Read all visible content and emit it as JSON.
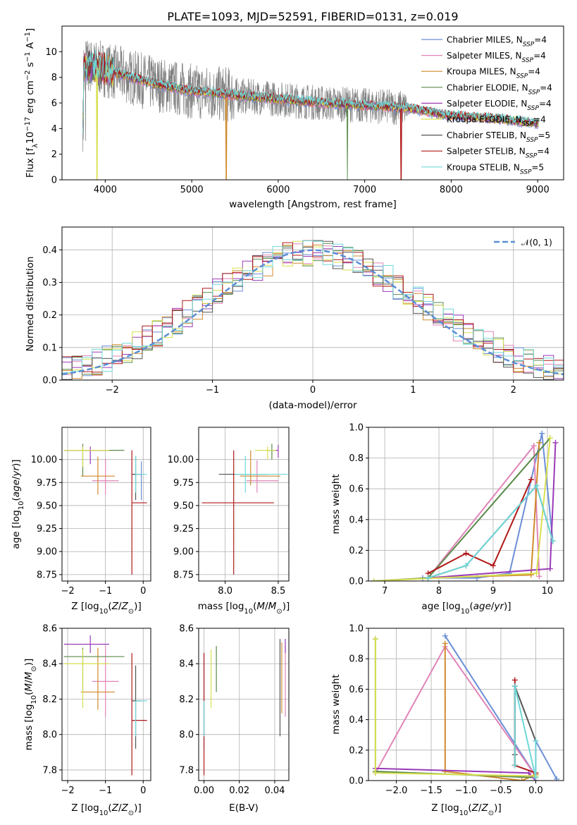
{
  "title": "PLATE=1093, MJD=52591, FIBERID=0131, z=0.019",
  "colors": {
    "Chabrier MILES": "#6b8fd8",
    "Salpeter MILES": "#e084b8",
    "Kroupa MILES": "#d08a2c",
    "Chabrier ELODIE": "#5a8a4a",
    "Salpeter ELODIE": "#9a3ab8",
    "Kroupa ELODIE": "#d8e050",
    "Chabrier STELIB": "#555555",
    "Salpeter STELIB": "#b01818",
    "Kroupa STELIB": "#70d8d8"
  },
  "legend_labels": [
    "Chabrier MILES, N",
    "Salpeter MILES, N",
    "Kroupa MILES, N",
    "Chabrier ELODIE, N",
    "Salpeter ELODIE, N",
    "Kroupa ELODIE, N",
    "Chabrier STELIB, N",
    "Salpeter STELIB, N",
    "Kroupa STELIB, N"
  ],
  "legend_sub": "SSP",
  "legend_counts": [
    "=4",
    "=4",
    "=4",
    "=4",
    "=4",
    "=4",
    "=5",
    "=4",
    "=5"
  ],
  "chart_data": [
    {
      "type": "line",
      "name": "spectrum",
      "xlabel": "wavelength [Angstrom, rest frame]",
      "ylabel_parts": [
        "Flux [f",
        "λ",
        "10",
        "−17",
        " erg cm",
        "−2",
        " s",
        "−1",
        " A",
        "−1",
        "]"
      ],
      "xlim": [
        3500,
        9300
      ],
      "ylim": [
        0,
        12
      ],
      "xticks": [
        4000,
        5000,
        6000,
        7000,
        8000,
        9000
      ],
      "yticks": [
        0,
        2,
        4,
        6,
        8,
        10
      ],
      "continuum": [
        [
          3750,
          9.0
        ],
        [
          4000,
          8.6
        ],
        [
          4500,
          7.6
        ],
        [
          5000,
          6.9
        ],
        [
          5500,
          6.6
        ],
        [
          6000,
          6.3
        ],
        [
          6500,
          6.0
        ],
        [
          7000,
          5.8
        ],
        [
          7500,
          5.6
        ],
        [
          8000,
          5.0
        ],
        [
          8500,
          4.8
        ],
        [
          9000,
          4.4
        ]
      ],
      "drops": [
        {
          "series": "Kroupa ELODIE",
          "x": 3905
        },
        {
          "series": "Kroupa MILES",
          "x": 5400
        },
        {
          "series": "Chabrier ELODIE",
          "x": 6800
        },
        {
          "series": "Salpeter STELIB",
          "x": 7420
        }
      ]
    },
    {
      "type": "histogram",
      "name": "residuals",
      "xlabel": "(data-model)/error",
      "ylabel": "Normed distribution",
      "xlim": [
        -2.5,
        2.5
      ],
      "ylim": [
        0,
        0.47
      ],
      "xticks": [
        -2,
        -1,
        0,
        1,
        2
      ],
      "xtick_labels": [
        "−2",
        "−1",
        "0",
        "1",
        "2"
      ],
      "yticks": [
        0.0,
        0.1,
        0.2,
        0.3,
        0.4
      ],
      "ytick_labels": [
        "0.0",
        "0.1",
        "0.2",
        "0.3",
        "0.4"
      ],
      "bin_width": 0.1,
      "normal_label": "𝒩(0, 1)",
      "normal_color": "#5b8ed6"
    },
    {
      "type": "errorbar",
      "name": "age-vs-Z",
      "xlabel": "Z [log10(Z/Z⊙)]",
      "ylabel": "age  [log10(age/yr)]",
      "xlim": [
        -2.15,
        0.2
      ],
      "ylim": [
        8.68,
        10.35
      ],
      "xticks": [
        -2,
        -1,
        0
      ],
      "xtick_labels": [
        "−2",
        "−1",
        "0"
      ],
      "yticks": [
        8.75,
        9.0,
        9.25,
        9.5,
        9.75,
        10.0
      ],
      "ytick_labels": [
        "8.75",
        "9.00",
        "9.25",
        "9.50",
        "9.75",
        "10.00"
      ],
      "points": [
        {
          "series": "Chabrier MILES",
          "x": -0.05,
          "xerr": [
            0.25,
            0.0
          ],
          "y": 9.84,
          "yerr": [
            0.28,
            0.14
          ]
        },
        {
          "series": "Salpeter MILES",
          "x": -1.0,
          "xerr": [
            0.35,
            0.35
          ],
          "y": 9.77,
          "yerr": [
            0.15,
            0.24
          ]
        },
        {
          "series": "Kroupa MILES",
          "x": -1.2,
          "xerr": [
            0.45,
            0.45
          ],
          "y": 9.82,
          "yerr": [
            0.2,
            0.21
          ]
        },
        {
          "series": "Chabrier ELODIE",
          "x": -1.6,
          "xerr": [
            0.5,
            1.1
          ],
          "y": 10.1,
          "yerr": [
            0.28,
            0.07
          ]
        },
        {
          "series": "Salpeter ELODIE",
          "x": -1.4,
          "xerr": [
            0.7,
            0.5
          ],
          "y": 10.1,
          "yerr": [
            0.15,
            0.04
          ]
        },
        {
          "series": "Kroupa ELODIE",
          "x": -1.6,
          "xerr": [
            0.5,
            0.7
          ],
          "y": 10.1,
          "yerr": [
            0.18,
            0.04
          ]
        },
        {
          "series": "Chabrier STELIB",
          "x": -0.2,
          "xerr": [
            0.1,
            0.15
          ],
          "y": 9.84,
          "yerr": [
            0.28,
            0.2
          ]
        },
        {
          "series": "Salpeter STELIB",
          "x": -0.3,
          "xerr": [
            0.0,
            0.4
          ],
          "y": 9.53,
          "yerr": [
            0.78,
            0.57
          ]
        },
        {
          "series": "Kroupa STELIB",
          "x": -0.2,
          "xerr": [
            0.0,
            0.3
          ],
          "y": 9.84,
          "yerr": [
            0.2,
            0.2
          ]
        }
      ]
    },
    {
      "type": "errorbar",
      "name": "age-vs-mass",
      "xlabel": "mass [log10(M/M⊙)]",
      "xlim": [
        7.75,
        8.6
      ],
      "ylim": [
        8.68,
        10.35
      ],
      "xticks": [
        8.0,
        8.5
      ],
      "xtick_labels": [
        "8.0",
        "8.5"
      ],
      "yticks": [
        8.75,
        9.0,
        9.25,
        9.5,
        9.75,
        10.0
      ],
      "ytick_labels": [
        "8.75",
        "9.00",
        "9.25",
        "9.50",
        "9.75",
        "10.00"
      ],
      "points": [
        {
          "series": "Chabrier MILES",
          "x": 8.2,
          "xerr": [
            0.2,
            0.2
          ],
          "y": 9.84,
          "yerr": [
            0.0,
            0.0
          ]
        },
        {
          "series": "Salpeter MILES",
          "x": 8.3,
          "xerr": [
            0.1,
            0.2
          ],
          "y": 9.77,
          "yerr": [
            0.13,
            0.22
          ]
        },
        {
          "series": "Kroupa MILES",
          "x": 8.24,
          "xerr": [
            0.1,
            0.28
          ],
          "y": 9.82,
          "yerr": [
            0.1,
            0.28
          ]
        },
        {
          "series": "Chabrier ELODIE",
          "x": 8.44,
          "xerr": [
            0.05,
            0.05
          ],
          "y": 10.1,
          "yerr": [
            0.1,
            0.07
          ]
        },
        {
          "series": "Salpeter ELODIE",
          "x": 8.5,
          "xerr": [
            0.08,
            0.0
          ],
          "y": 10.1,
          "yerr": [
            0.08,
            0.06
          ]
        },
        {
          "series": "Kroupa ELODIE",
          "x": 8.4,
          "xerr": [
            0.12,
            0.08
          ],
          "y": 10.1,
          "yerr": [
            0.1,
            0.04
          ]
        },
        {
          "series": "Chabrier STELIB",
          "x": 8.19,
          "xerr": [
            0.25,
            0.2
          ],
          "y": 9.84,
          "yerr": [
            0.0,
            0.0
          ]
        },
        {
          "series": "Salpeter STELIB",
          "x": 8.08,
          "xerr": [
            0.3,
            0.38
          ],
          "y": 9.53,
          "yerr": [
            0.78,
            0.57
          ]
        },
        {
          "series": "Kroupa STELIB",
          "x": 8.19,
          "xerr": [
            0.1,
            0.4
          ],
          "y": 9.84,
          "yerr": [
            0.2,
            0.2
          ]
        }
      ]
    },
    {
      "type": "line",
      "name": "mass-weight-vs-age",
      "xlabel": "age  [log10(age/yr)]",
      "ylabel": "mass weight",
      "xlim": [
        6.7,
        10.3
      ],
      "ylim": [
        0,
        1.0
      ],
      "xticks": [
        7,
        8,
        9,
        10
      ],
      "yticks": [
        0.0,
        0.2,
        0.4,
        0.6,
        0.8,
        1.0
      ],
      "ytick_labels": [
        "0.0",
        "0.2",
        "0.4",
        "0.6",
        "0.8",
        "1.0"
      ],
      "series": [
        {
          "name": "Chabrier MILES",
          "x": [
            7.7,
            8.7,
            9.3,
            9.9,
            10.1
          ],
          "y": [
            0.02,
            0.02,
            0.05,
            0.96,
            0.26
          ]
        },
        {
          "name": "Salpeter MILES",
          "x": [
            7.8,
            9.75,
            9.85
          ],
          "y": [
            0.02,
            0.88,
            0.03
          ]
        },
        {
          "name": "Kroupa MILES",
          "x": [
            7.8,
            9.7,
            9.85
          ],
          "y": [
            0.02,
            0.04,
            0.9
          ]
        },
        {
          "name": "Chabrier ELODIE",
          "x": [
            6.8,
            7.8,
            10.05
          ],
          "y": [
            0.0,
            0.02,
            0.93
          ]
        },
        {
          "name": "Salpeter ELODIE",
          "x": [
            7.8,
            10.05,
            10.15
          ],
          "y": [
            0.02,
            0.08,
            0.9
          ]
        },
        {
          "name": "Kroupa ELODIE",
          "x": [
            6.8,
            9.8,
            10.05
          ],
          "y": [
            0.0,
            0.05,
            0.93
          ]
        },
        {
          "name": "Chabrier STELIB",
          "x": [
            7.8,
            8.5,
            9.8,
            10.1
          ],
          "y": [
            0.02,
            0.1,
            0.62,
            0.26
          ]
        },
        {
          "name": "Salpeter STELIB",
          "x": [
            7.8,
            8.5,
            9.0,
            9.7
          ],
          "y": [
            0.05,
            0.18,
            0.1,
            0.66
          ]
        },
        {
          "name": "Kroupa STELIB",
          "x": [
            7.8,
            8.5,
            9.8,
            10.1
          ],
          "y": [
            0.02,
            0.1,
            0.62,
            0.26
          ]
        }
      ]
    },
    {
      "type": "errorbar",
      "name": "mass-vs-Z",
      "xlabel": "Z [log10(Z/Z⊙)]",
      "ylabel": "mass [log10(M/M⊙)]",
      "xlim": [
        -2.15,
        0.2
      ],
      "ylim": [
        7.74,
        8.6
      ],
      "xticks": [
        -2,
        -1,
        0
      ],
      "xtick_labels": [
        "−2",
        "−1",
        "0"
      ],
      "yticks": [
        7.8,
        8.0,
        8.2,
        8.4,
        8.6
      ],
      "ytick_labels": [
        "7.8",
        "8.0",
        "8.2",
        "8.4",
        "8.6"
      ],
      "points": [
        {
          "series": "Chabrier MILES",
          "x": -0.05,
          "xerr": [
            0.25,
            0.0
          ],
          "y": 8.19,
          "yerr": [
            0.0,
            0.0
          ]
        },
        {
          "series": "Salpeter MILES",
          "x": -1.0,
          "xerr": [
            0.35,
            0.35
          ],
          "y": 8.3,
          "yerr": [
            0.2,
            0.2
          ]
        },
        {
          "series": "Kroupa MILES",
          "x": -1.2,
          "xerr": [
            0.45,
            0.45
          ],
          "y": 8.24,
          "yerr": [
            0.1,
            0.25
          ]
        },
        {
          "series": "Chabrier ELODIE",
          "x": -1.6,
          "xerr": [
            0.5,
            1.1
          ],
          "y": 8.44,
          "yerr": [
            0.2,
            0.05
          ]
        },
        {
          "series": "Salpeter ELODIE",
          "x": -1.4,
          "xerr": [
            0.7,
            0.5
          ],
          "y": 8.51,
          "yerr": [
            0.05,
            0.05
          ]
        },
        {
          "series": "Kroupa ELODIE",
          "x": -1.6,
          "xerr": [
            0.5,
            0.7
          ],
          "y": 8.4,
          "yerr": [
            0.25,
            0.08
          ]
        },
        {
          "series": "Chabrier STELIB",
          "x": -0.2,
          "xerr": [
            0.1,
            0.15
          ],
          "y": 8.19,
          "yerr": [
            0.27,
            0.2
          ]
        },
        {
          "series": "Salpeter STELIB",
          "x": -0.3,
          "xerr": [
            0.0,
            0.4
          ],
          "y": 8.08,
          "yerr": [
            0.31,
            0.38
          ]
        },
        {
          "series": "Kroupa STELIB",
          "x": -0.2,
          "xerr": [
            0.0,
            0.3
          ],
          "y": 8.19,
          "yerr": [
            0.2,
            0.0
          ]
        }
      ]
    },
    {
      "type": "errorbar",
      "name": "mass-vs-ebv",
      "xlabel": "E(B-V)",
      "xlim": [
        -0.003,
        0.048
      ],
      "ylim": [
        7.74,
        8.6
      ],
      "xticks": [
        0.0,
        0.02,
        0.04
      ],
      "xtick_labels": [
        "0.00",
        "0.02",
        "0.04"
      ],
      "yticks": [
        7.8,
        8.0,
        8.2,
        8.4,
        8.6
      ],
      "ytick_labels": [
        "7.8",
        "8.0",
        "8.2",
        "8.4",
        "8.6"
      ],
      "points": [
        {
          "series": "Chabrier MILES",
          "x": 0.0,
          "y": 8.19,
          "yerr": [
            0.27,
            0.27
          ]
        },
        {
          "series": "Salpeter MILES",
          "x": 0.046,
          "y": 8.3,
          "yerr": [
            0.2,
            0.2
          ]
        },
        {
          "series": "Kroupa MILES",
          "x": 0.044,
          "y": 8.24,
          "yerr": [
            0.12,
            0.28
          ]
        },
        {
          "series": "Chabrier ELODIE",
          "x": 0.007,
          "y": 8.44,
          "yerr": [
            0.2,
            0.06
          ]
        },
        {
          "series": "Salpeter ELODIE",
          "x": 0.046,
          "y": 8.51,
          "yerr": [
            0.05,
            0.03
          ]
        },
        {
          "series": "Kroupa ELODIE",
          "x": 0.004,
          "y": 8.4,
          "yerr": [
            0.25,
            0.08
          ]
        },
        {
          "series": "Chabrier STELIB",
          "x": 0.043,
          "y": 8.19,
          "yerr": [
            0.2,
            0.35
          ]
        },
        {
          "series": "Salpeter STELIB",
          "x": 0.0,
          "y": 8.08,
          "yerr": [
            0.31,
            0.38
          ]
        },
        {
          "series": "Kroupa STELIB",
          "x": 0.0,
          "y": 8.19,
          "yerr": [
            0.2,
            0.0
          ]
        }
      ]
    },
    {
      "type": "line",
      "name": "mass-weight-vs-Z",
      "xlabel": "Z [log10(Z/Z⊙)]",
      "ylabel": "mass weight",
      "xlim": [
        -2.4,
        0.4
      ],
      "ylim": [
        0,
        1.0
      ],
      "xticks": [
        -2.0,
        -1.5,
        -1.0,
        -0.5,
        0.0
      ],
      "xtick_labels": [
        "−2.0",
        "−1.5",
        "−1.0",
        "−0.5",
        "0.0"
      ],
      "yticks": [
        0.0,
        0.2,
        0.4,
        0.6,
        0.8,
        1.0
      ],
      "ytick_labels": [
        "0.0",
        "0.2",
        "0.4",
        "0.6",
        "0.8",
        "1.0"
      ],
      "series": [
        {
          "name": "Chabrier MILES",
          "x": [
            -1.3,
            0.0,
            0.0,
            0.3
          ],
          "y": [
            0.95,
            0.03,
            0.26,
            0.01
          ]
        },
        {
          "name": "Salpeter MILES",
          "x": [
            -2.3,
            -1.3,
            0.0
          ],
          "y": [
            0.05,
            0.88,
            0.03
          ]
        },
        {
          "name": "Kroupa MILES",
          "x": [
            -1.3,
            -1.3,
            -0.2,
            0.0
          ],
          "y": [
            0.9,
            0.06,
            0.0,
            0.04
          ]
        },
        {
          "name": "Chabrier ELODIE",
          "x": [
            -2.3,
            -2.3,
            0.0
          ],
          "y": [
            0.93,
            0.06,
            0.02
          ]
        },
        {
          "name": "Salpeter ELODIE",
          "x": [
            -2.3,
            -0.1,
            0.0
          ],
          "y": [
            0.08,
            0.05,
            0.0
          ]
        },
        {
          "name": "Kroupa ELODIE",
          "x": [
            -2.3,
            -2.3,
            0.0
          ],
          "y": [
            0.93,
            0.05,
            0.03
          ]
        },
        {
          "name": "Chabrier STELIB",
          "x": [
            -0.3,
            -0.3,
            -0.3,
            0.0
          ],
          "y": [
            0.1,
            0.17,
            0.62,
            0.26
          ]
        },
        {
          "name": "Salpeter STELIB",
          "x": [
            -0.3,
            -0.3,
            0.0
          ],
          "y": [
            0.66,
            0.1,
            0.05
          ]
        },
        {
          "name": "Kroupa STELIB",
          "x": [
            -0.3,
            -0.3,
            0.0,
            0.0
          ],
          "y": [
            0.1,
            0.62,
            0.02,
            0.26
          ]
        }
      ]
    }
  ]
}
